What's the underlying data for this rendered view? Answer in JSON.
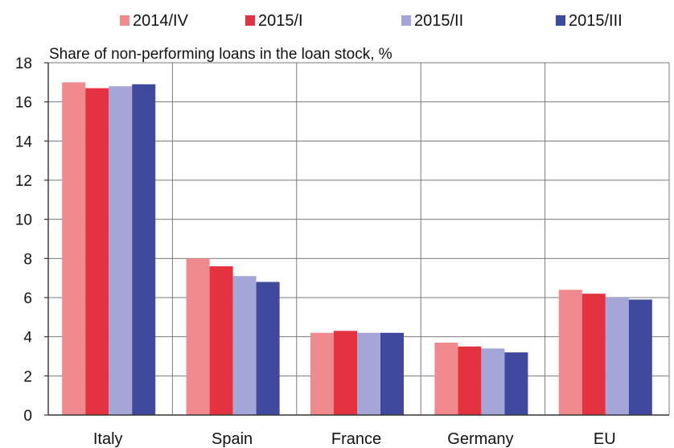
{
  "chart_data": {
    "type": "bar",
    "title": "",
    "subtitle": "Share of non-performing loans in the loan stock, %",
    "xlabel": "",
    "ylabel": "",
    "ylim": [
      0,
      18
    ],
    "yticks": [
      0,
      2,
      4,
      6,
      8,
      10,
      12,
      14,
      16,
      18
    ],
    "categories": [
      "Italy",
      "Spain",
      "France",
      "Germany",
      "EU"
    ],
    "grid": true,
    "legend_position": "top",
    "series": [
      {
        "name": "2014/IV",
        "color": "#F08A8F",
        "values": [
          17.0,
          8.0,
          4.2,
          3.7,
          6.4
        ]
      },
      {
        "name": "2015/I",
        "color": "#E5323F",
        "values": [
          16.7,
          7.6,
          4.3,
          3.5,
          6.2
        ]
      },
      {
        "name": "2015/II",
        "color": "#A3A6D6",
        "values": [
          16.8,
          7.1,
          4.2,
          3.4,
          6.0
        ]
      },
      {
        "name": "2015/III",
        "color": "#3F4A9E",
        "values": [
          16.9,
          6.8,
          4.2,
          3.2,
          5.9
        ]
      }
    ]
  }
}
